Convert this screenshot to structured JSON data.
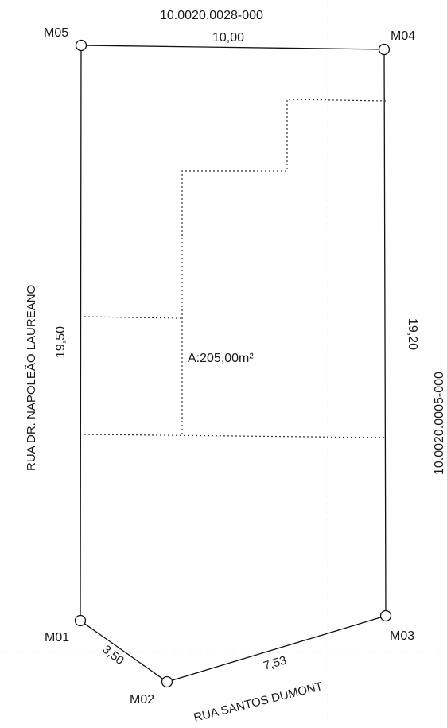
{
  "plot": {
    "top_lot_id": "10.0020.0028-000",
    "right_lot_id": "10.0020.0005-000",
    "area_label": "A:205,00m²",
    "street_left": "RUA DR. NAPOLEÃO LAUREANO",
    "street_bottom": "RUA SANTOS DUMONT",
    "markers": {
      "m05": "M05",
      "m04": "M04",
      "m03": "M03",
      "m02": "M02",
      "m01": "M01"
    },
    "dimensions": {
      "top": "10,00",
      "left": "19,50",
      "right": "19,20",
      "bottom_left": "3,50",
      "bottom_right": "7,53"
    }
  }
}
